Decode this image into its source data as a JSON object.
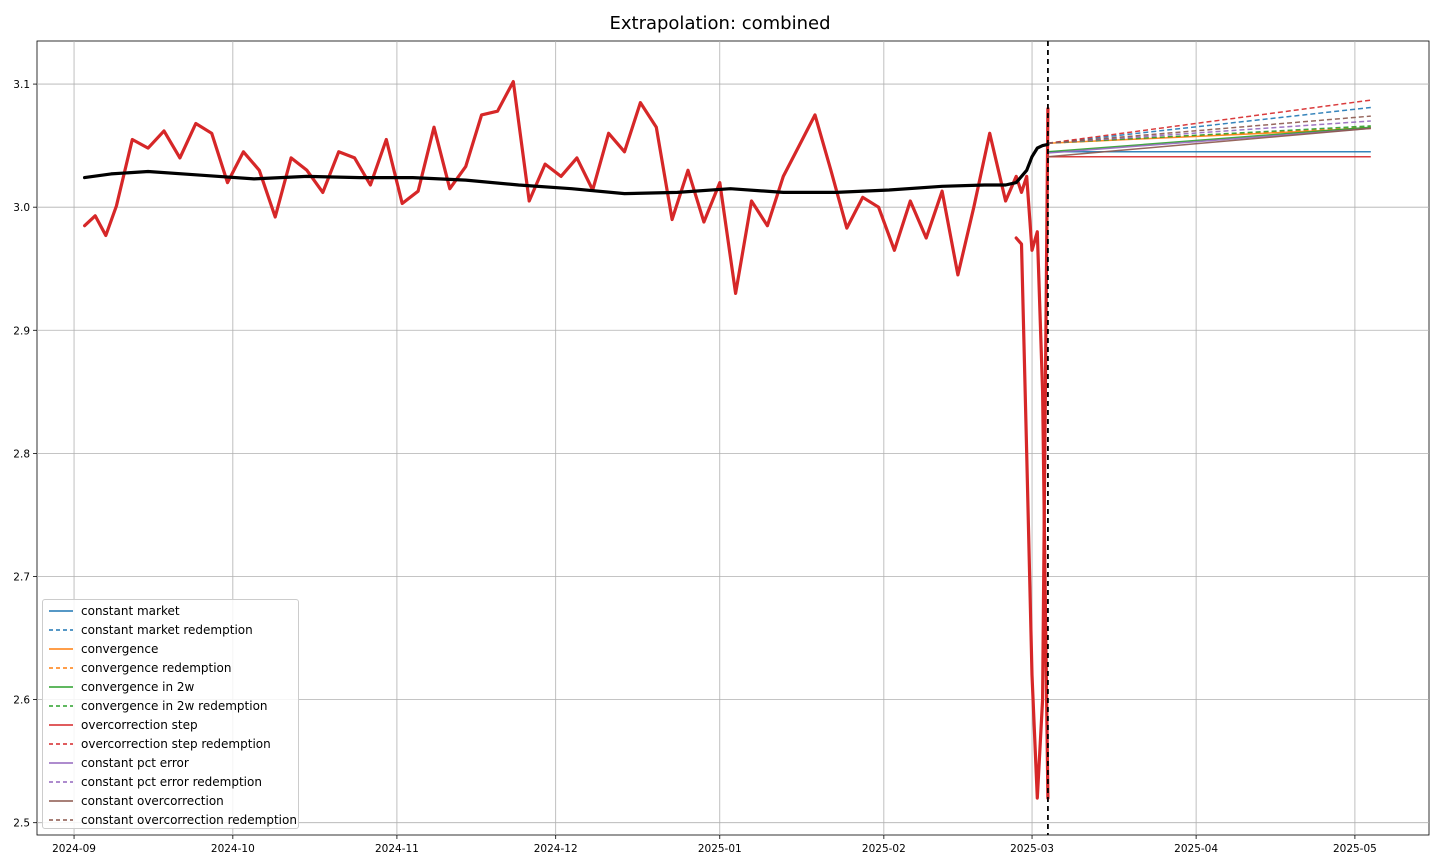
{
  "chart_data": {
    "type": "line",
    "title": "Extrapolation: combined",
    "xlabel": "",
    "ylabel": "",
    "x_axis_type": "date",
    "xlim": [
      "2024-08-25",
      "2025-05-15"
    ],
    "ylim": [
      2.49,
      3.135
    ],
    "x_ticks": [
      "2024-09",
      "2024-10",
      "2024-11",
      "2024-12",
      "2025-01",
      "2025-02",
      "2025-03",
      "2025-04",
      "2025-05"
    ],
    "y_ticks": [
      "2.5",
      "2.6",
      "2.7",
      "2.8",
      "2.9",
      "3.0",
      "3.1"
    ],
    "grid": true,
    "legend_position": "lower-left",
    "forecast_start": "2025-03-04",
    "series": [
      {
        "name": "constant market",
        "color": "#1f77b4",
        "dashed": false,
        "x": [
          "2025-03-04",
          "2025-05-04"
        ],
        "y": [
          3.045,
          3.045
        ]
      },
      {
        "name": "constant market redemption",
        "color": "#1f77b4",
        "dashed": true,
        "x": [
          "2025-03-04",
          "2025-05-04"
        ],
        "y": [
          3.052,
          3.081
        ]
      },
      {
        "name": "convergence",
        "color": "#ff7f0e",
        "dashed": false,
        "x": [
          "2025-03-04",
          "2025-05-04"
        ],
        "y": [
          3.052,
          3.064
        ]
      },
      {
        "name": "convergence redemption",
        "color": "#ff7f0e",
        "dashed": true,
        "x": [
          "2025-03-04",
          "2025-05-04"
        ],
        "y": [
          3.052,
          3.065
        ]
      },
      {
        "name": "convergence in 2w",
        "color": "#2ca02c",
        "dashed": false,
        "x": [
          "2025-03-04",
          "2025-05-04"
        ],
        "y": [
          3.045,
          3.065
        ]
      },
      {
        "name": "convergence in 2w redemption",
        "color": "#2ca02c",
        "dashed": true,
        "x": [
          "2025-03-04",
          "2025-05-04"
        ],
        "y": [
          3.052,
          3.066
        ]
      },
      {
        "name": "overcorrection step",
        "color": "#d62728",
        "dashed": false,
        "x": [
          "2025-03-04",
          "2025-05-04"
        ],
        "y": [
          3.041,
          3.041
        ]
      },
      {
        "name": "overcorrection step redemption",
        "color": "#d62728",
        "dashed": true,
        "x": [
          "2025-03-04",
          "2025-05-04"
        ],
        "y": [
          3.052,
          3.087
        ]
      },
      {
        "name": "constant pct error",
        "color": "#9467bd",
        "dashed": false,
        "x": [
          "2025-03-04",
          "2025-05-04"
        ],
        "y": [
          3.044,
          3.064
        ]
      },
      {
        "name": "constant pct error redemption",
        "color": "#9467bd",
        "dashed": true,
        "x": [
          "2025-03-04",
          "2025-05-04"
        ],
        "y": [
          3.052,
          3.07
        ]
      },
      {
        "name": "constant overcorrection",
        "color": "#8c564b",
        "dashed": false,
        "x": [
          "2025-03-04",
          "2025-05-04"
        ],
        "y": [
          3.041,
          3.064
        ]
      },
      {
        "name": "constant overcorrection redemption",
        "color": "#8c564b",
        "dashed": true,
        "x": [
          "2025-03-04",
          "2025-05-04"
        ],
        "y": [
          3.052,
          3.074
        ]
      }
    ],
    "history_series": [
      {
        "color": "#d62728",
        "x": [
          "2024-09-03",
          "2024-09-05",
          "2024-09-07",
          "2024-09-09",
          "2024-09-12",
          "2024-09-15",
          "2024-09-18",
          "2024-09-21",
          "2024-09-24",
          "2024-09-27",
          "2024-09-30",
          "2024-10-03",
          "2024-10-06",
          "2024-10-09",
          "2024-10-12",
          "2024-10-15",
          "2024-10-18",
          "2024-10-21",
          "2024-10-24",
          "2024-10-27",
          "2024-10-30",
          "2024-11-02",
          "2024-11-05",
          "2024-11-08",
          "2024-11-11",
          "2024-11-14",
          "2024-11-17",
          "2024-11-20",
          "2024-11-23",
          "2024-11-26",
          "2024-11-29",
          "2024-12-02",
          "2024-12-05",
          "2024-12-08",
          "2024-12-11",
          "2024-12-14",
          "2024-12-17",
          "2024-12-20",
          "2024-12-23",
          "2024-12-26",
          "2024-12-29",
          "2025-01-01",
          "2025-01-04",
          "2025-01-07",
          "2025-01-10",
          "2025-01-13",
          "2025-01-16",
          "2025-01-19",
          "2025-01-22",
          "2025-01-25",
          "2025-01-28",
          "2025-01-31",
          "2025-02-03",
          "2025-02-06",
          "2025-02-09",
          "2025-02-12",
          "2025-02-15",
          "2025-02-18",
          "2025-02-21",
          "2025-02-24",
          "2025-02-26",
          "2025-02-27",
          "2025-02-28",
          "2025-03-01",
          "2025-03-02",
          "2025-03-03",
          "2025-03-04"
        ],
        "y": [
          2.985,
          2.993,
          2.977,
          3.001,
          3.055,
          3.048,
          3.062,
          3.04,
          3.068,
          3.06,
          3.02,
          3.045,
          3.03,
          2.992,
          3.04,
          3.03,
          3.012,
          3.045,
          3.04,
          3.018,
          3.055,
          3.003,
          3.013,
          3.065,
          3.015,
          3.033,
          3.075,
          3.078,
          3.102,
          3.005,
          3.035,
          3.025,
          3.04,
          3.014,
          3.06,
          3.045,
          3.085,
          3.065,
          2.99,
          3.03,
          2.988,
          3.02,
          2.93,
          3.005,
          2.985,
          3.025,
          3.05,
          3.075,
          3.03,
          2.983,
          3.008,
          3.0,
          2.965,
          3.005,
          2.975,
          3.013,
          2.945,
          3.0,
          3.06,
          3.005,
          3.025,
          3.012,
          3.025,
          2.965,
          2.98,
          2.85,
          2.52
        ]
      },
      {
        "color": "#d62728",
        "x": [
          "2025-02-26",
          "2025-02-27",
          "2025-02-28",
          "2025-03-01",
          "2025-03-02",
          "2025-03-03",
          "2025-03-04"
        ],
        "y": [
          2.975,
          2.97,
          2.8,
          2.62,
          2.52,
          2.6,
          3.08
        ]
      },
      {
        "color": "#000000",
        "x": [
          "2024-09-03",
          "2024-09-08",
          "2024-09-15",
          "2024-09-25",
          "2024-10-05",
          "2024-10-15",
          "2024-10-25",
          "2024-11-04",
          "2024-11-14",
          "2024-11-24",
          "2024-12-04",
          "2024-12-14",
          "2024-12-24",
          "2025-01-03",
          "2025-01-13",
          "2025-01-23",
          "2025-02-02",
          "2025-02-12",
          "2025-02-20",
          "2025-02-24",
          "2025-02-26",
          "2025-02-28",
          "2025-03-01",
          "2025-03-02",
          "2025-03-03",
          "2025-03-04"
        ],
        "y": [
          3.024,
          3.027,
          3.029,
          3.026,
          3.023,
          3.025,
          3.024,
          3.024,
          3.022,
          3.018,
          3.015,
          3.011,
          3.012,
          3.015,
          3.012,
          3.012,
          3.014,
          3.017,
          3.018,
          3.018,
          3.02,
          3.03,
          3.041,
          3.048,
          3.05,
          3.051
        ]
      }
    ]
  }
}
